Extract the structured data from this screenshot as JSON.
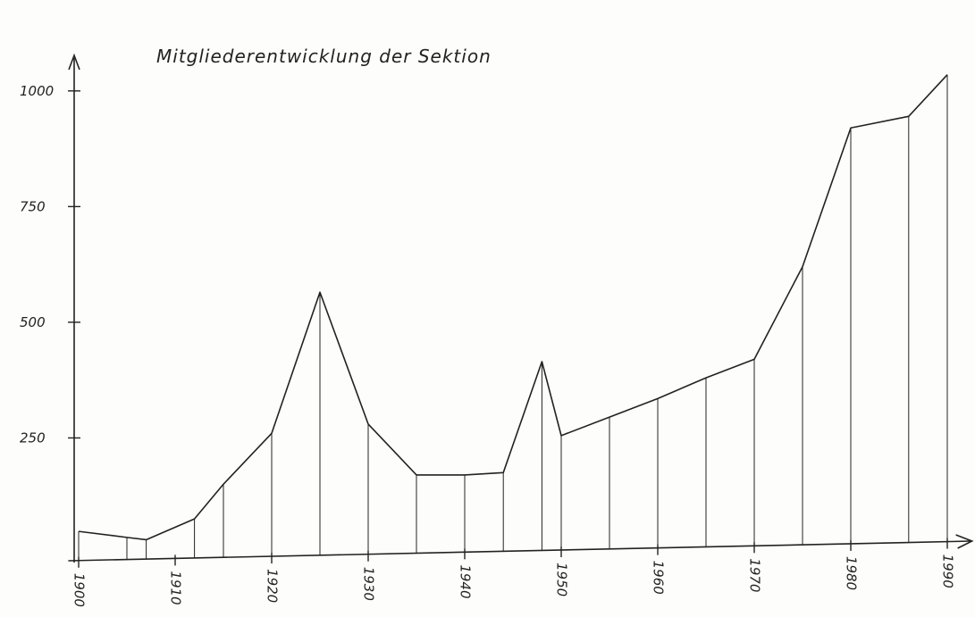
{
  "chart_data": {
    "type": "line",
    "title": "Mitgliederentwicklung der Sektion",
    "x": [
      1900,
      1905,
      1907,
      1912,
      1915,
      1920,
      1925,
      1930,
      1935,
      1940,
      1944,
      1948,
      1950,
      1955,
      1960,
      1965,
      1970,
      1975,
      1980,
      1986,
      1990
    ],
    "series": [
      {
        "color": "#222222",
        "values": [
          48,
          35,
          30,
          75,
          150,
          260,
          565,
          280,
          170,
          170,
          175,
          415,
          255,
          295,
          335,
          380,
          420,
          620,
          920,
          945,
          1035
        ]
      }
    ],
    "xlim": [
      1898,
      1992
    ],
    "xticks": [
      1900,
      1910,
      1920,
      1930,
      1940,
      1950,
      1960,
      1970,
      1980,
      1990
    ],
    "ylim": [
      0,
      1100
    ],
    "yticks": [
      250,
      500,
      750,
      1000
    ],
    "drop_lines": true
  }
}
